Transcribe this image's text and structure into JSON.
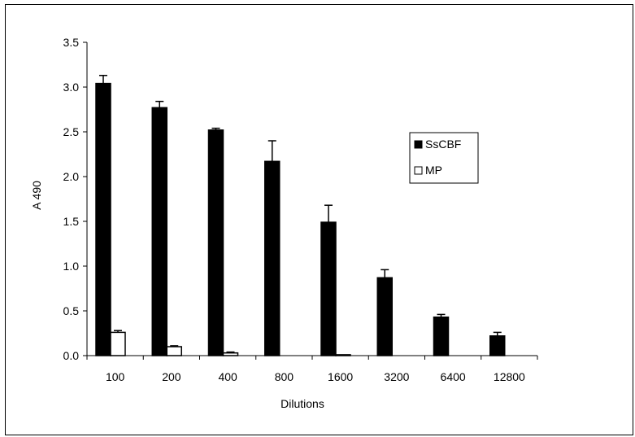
{
  "chart_data": {
    "type": "bar",
    "xlabel": "Dilutions",
    "ylabel": "A 490",
    "categories": [
      "100",
      "200",
      "400",
      "800",
      "1600",
      "3200",
      "6400",
      "12800"
    ],
    "ylim": [
      0,
      3.5
    ],
    "yticks": [
      "0.0",
      "0.5",
      "1.0",
      "1.5",
      "2.0",
      "2.5",
      "3.0",
      "3.5"
    ],
    "grid": false,
    "legend_position": "right",
    "series": [
      {
        "name": "SsCBF",
        "color": "#000000",
        "values": [
          3.04,
          2.77,
          2.52,
          2.17,
          1.49,
          0.87,
          0.43,
          0.22
        ],
        "errors": [
          0.09,
          0.07,
          0.02,
          0.23,
          0.19,
          0.09,
          0.03,
          0.04
        ]
      },
      {
        "name": "MP",
        "color": "#ffffff",
        "values": [
          0.26,
          0.1,
          0.03,
          0.0,
          0.01,
          0.0,
          0.0,
          0.0
        ],
        "errors": [
          0.02,
          0.01,
          0.01,
          0.0,
          0.0,
          0.0,
          0.0,
          0.0
        ]
      }
    ]
  }
}
